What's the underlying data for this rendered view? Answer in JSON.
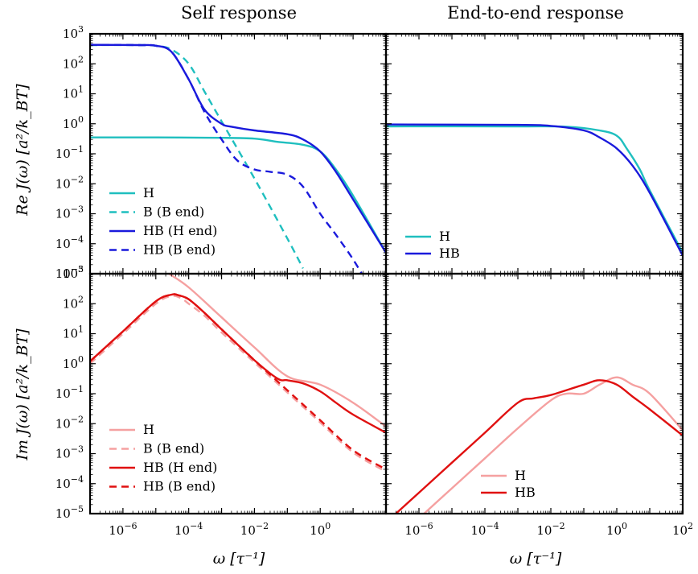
{
  "figure": {
    "col_titles": [
      "Self response",
      "End-to-end response"
    ],
    "ylabels": [
      "Re J(ω) [a²/k_BT]",
      "Im J(ω) [a²/k_BT]"
    ],
    "xlabel": "ω [τ⁻¹]",
    "colors": {
      "H_re": "#1fbfbf",
      "HB_re": "#1a1adc",
      "H_im": "#f5a0a0",
      "HB_im": "#e01010"
    }
  },
  "chart_data": [
    {
      "type": "line",
      "panel": "top-left",
      "title": "Self response",
      "xscale": "log",
      "yscale": "log",
      "xlim": [
        1e-07,
        100
      ],
      "ylim": [
        1e-05,
        1000
      ],
      "legend": {
        "position": "lower-left",
        "entries": [
          "H",
          "B (B end)",
          "HB (H end)",
          "HB (B end)"
        ]
      },
      "series": [
        {
          "name": "H",
          "color": "#1fbfbf",
          "dash": false,
          "x": [
            1e-07,
            1e-05,
            0.001,
            0.01,
            0.05,
            0.3,
            1,
            3,
            10,
            100
          ],
          "y": [
            0.35,
            0.35,
            0.34,
            0.32,
            0.25,
            0.2,
            0.12,
            0.03,
            0.004,
            5e-05
          ]
        },
        {
          "name": "B (B end)",
          "color": "#1fbfbf",
          "dash": true,
          "x": [
            1e-07,
            3e-06,
            1e-05,
            3e-05,
            0.0001,
            0.0003,
            0.001,
            0.01,
            0.1,
            0.3
          ],
          "y": [
            420,
            420,
            400,
            300,
            100,
            12,
            1.2,
            0.015,
            0.00015,
            1.5e-05
          ]
        },
        {
          "name": "HB (H end)",
          "color": "#1a1adc",
          "dash": false,
          "x": [
            1e-07,
            3e-06,
            1e-05,
            3e-05,
            0.0001,
            0.0003,
            0.001,
            0.002,
            0.01,
            0.1,
            0.3,
            1,
            3,
            10,
            100
          ],
          "y": [
            430,
            420,
            400,
            250,
            30,
            3,
            1.0,
            0.8,
            0.6,
            0.45,
            0.3,
            0.12,
            0.025,
            0.003,
            5e-05
          ]
        },
        {
          "name": "HB (B end)",
          "color": "#1a1adc",
          "dash": true,
          "x": [
            1e-07,
            3e-06,
            1e-05,
            3e-05,
            0.0001,
            0.0003,
            0.001,
            0.003,
            0.01,
            0.03,
            0.1,
            0.3,
            1,
            3,
            10,
            30
          ],
          "y": [
            430,
            420,
            400,
            250,
            30,
            2.5,
            0.3,
            0.06,
            0.03,
            0.025,
            0.02,
            0.008,
            0.001,
            0.0002,
            3e-05,
            4e-06
          ]
        }
      ]
    },
    {
      "type": "line",
      "panel": "top-right",
      "title": "End-to-end response",
      "xscale": "log",
      "yscale": "log",
      "xlim": [
        1e-07,
        100
      ],
      "ylim": [
        1e-05,
        1000
      ],
      "legend": {
        "position": "lower-left",
        "entries": [
          "H",
          "HB"
        ]
      },
      "series": [
        {
          "name": "H",
          "color": "#1fbfbf",
          "dash": false,
          "x": [
            1e-07,
            0.001,
            0.03,
            0.3,
            1,
            2,
            5,
            10,
            100
          ],
          "y": [
            0.82,
            0.82,
            0.8,
            0.6,
            0.4,
            0.15,
            0.03,
            0.006,
            5e-05
          ]
        },
        {
          "name": "HB",
          "color": "#1a1adc",
          "dash": false,
          "x": [
            1e-07,
            0.001,
            0.01,
            0.1,
            0.3,
            1,
            3,
            10,
            100
          ],
          "y": [
            0.95,
            0.92,
            0.85,
            0.6,
            0.35,
            0.15,
            0.04,
            0.005,
            4e-05
          ]
        }
      ]
    },
    {
      "type": "line",
      "panel": "bottom-left",
      "xscale": "log",
      "yscale": "log",
      "xlim": [
        1e-07,
        100
      ],
      "ylim": [
        1e-05,
        1000
      ],
      "legend": {
        "position": "lower-left",
        "entries": [
          "H",
          "B (B end)",
          "HB (H end)",
          "HB (B end)"
        ]
      },
      "series": [
        {
          "name": "H",
          "color": "#f5a0a0",
          "dash": false,
          "x": [
            2.5e-05,
            0.0001,
            0.001,
            0.01,
            0.1,
            1,
            10,
            100
          ],
          "y": [
            1000,
            350,
            35,
            3.5,
            0.38,
            0.2,
            0.05,
            0.008
          ]
        },
        {
          "name": "B (B end)",
          "color": "#f5a0a0",
          "dash": true,
          "x": [
            1e-07,
            1e-06,
            1e-05,
            3e-05,
            6e-05,
            0.0001,
            0.0003,
            0.001,
            0.01,
            0.1,
            1,
            10,
            100
          ],
          "y": [
            1,
            10,
            100,
            180,
            150,
            100,
            40,
            11,
            1.1,
            0.11,
            0.011,
            0.0011,
            0.00025
          ]
        },
        {
          "name": "HB (H end)",
          "color": "#e01010",
          "dash": false,
          "x": [
            1e-07,
            1e-06,
            1e-05,
            3e-05,
            5e-05,
            0.0001,
            0.0003,
            0.001,
            0.01,
            0.05,
            0.1,
            0.3,
            1,
            3,
            10,
            100
          ],
          "y": [
            1.2,
            12,
            120,
            200,
            190,
            140,
            50,
            14,
            1.3,
            0.32,
            0.28,
            0.22,
            0.12,
            0.05,
            0.02,
            0.005
          ]
        },
        {
          "name": "HB (B end)",
          "color": "#e01010",
          "dash": true,
          "x": [
            1e-07,
            1e-06,
            1e-05,
            3e-05,
            5e-05,
            0.0001,
            0.0003,
            0.001,
            0.01,
            0.1,
            1,
            10,
            100
          ],
          "y": [
            1.2,
            12,
            120,
            200,
            190,
            140,
            50,
            14,
            1.3,
            0.13,
            0.013,
            0.0013,
            0.0003
          ]
        }
      ]
    },
    {
      "type": "line",
      "panel": "bottom-right",
      "xscale": "log",
      "yscale": "log",
      "xlim": [
        1e-07,
        100
      ],
      "ylim": [
        1e-05,
        1000
      ],
      "legend": {
        "position": "lower-center",
        "entries": [
          "H",
          "HB"
        ]
      },
      "series": [
        {
          "name": "H",
          "color": "#f5a0a0",
          "dash": false,
          "x": [
            1e-06,
            1e-05,
            0.0001,
            0.001,
            0.01,
            0.03,
            0.1,
            0.3,
            1,
            3,
            10,
            100
          ],
          "y": [
            7e-06,
            7e-05,
            0.0007,
            0.007,
            0.06,
            0.1,
            0.1,
            0.2,
            0.35,
            0.2,
            0.1,
            0.006
          ]
        },
        {
          "name": "HB",
          "color": "#e01010",
          "dash": false,
          "x": [
            1e-07,
            1e-06,
            1e-05,
            0.0001,
            0.001,
            0.003,
            0.01,
            0.1,
            0.3,
            1,
            3,
            10,
            100
          ],
          "y": [
            5e-06,
            5e-05,
            0.0005,
            0.005,
            0.05,
            0.07,
            0.09,
            0.2,
            0.28,
            0.2,
            0.08,
            0.03,
            0.004
          ]
        }
      ]
    }
  ]
}
